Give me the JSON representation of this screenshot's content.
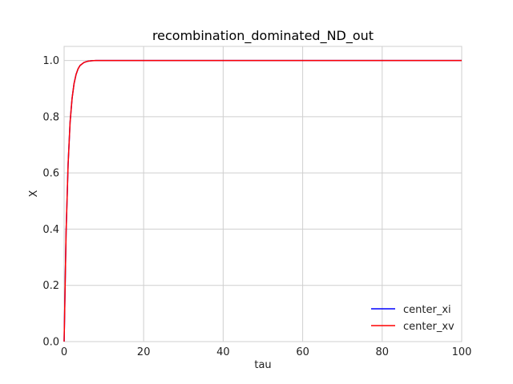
{
  "chart_data": {
    "type": "line",
    "title": "recombination_dominated_ND_out",
    "xlabel": "tau",
    "ylabel": "X",
    "xlim": [
      0,
      100
    ],
    "ylim": [
      0,
      1.05
    ],
    "x_ticks": [
      0,
      20,
      40,
      60,
      80,
      100
    ],
    "y_ticks": [
      0.0,
      0.2,
      0.4,
      0.6,
      0.8,
      1.0
    ],
    "x_tick_labels": [
      "0",
      "20",
      "40",
      "60",
      "80",
      "100"
    ],
    "y_tick_labels": [
      "0.0",
      "0.2",
      "0.4",
      "0.6",
      "0.8",
      "1.0"
    ],
    "grid": true,
    "legend_position": "bottom-right",
    "x": [
      0,
      0.5,
      1,
      1.5,
      2,
      2.5,
      3,
      3.5,
      4,
      5,
      6,
      7,
      8,
      10,
      15,
      20,
      30,
      40,
      50,
      60,
      70,
      80,
      90,
      100
    ],
    "series": [
      {
        "name": "center_xi",
        "color": "#0000ff",
        "values": [
          0.0,
          0.39,
          0.63,
          0.78,
          0.865,
          0.918,
          0.95,
          0.97,
          0.982,
          0.993,
          0.9975,
          0.999,
          1.0,
          1.0,
          1.0,
          1.0,
          1.0,
          1.0,
          1.0,
          1.0,
          1.0,
          1.0,
          1.0,
          1.0
        ]
      },
      {
        "name": "center_xv",
        "color": "#ff0000",
        "values": [
          0.0,
          0.39,
          0.63,
          0.78,
          0.865,
          0.918,
          0.95,
          0.97,
          0.982,
          0.993,
          0.9975,
          0.999,
          1.0,
          1.0,
          1.0,
          1.0,
          1.0,
          1.0,
          1.0,
          1.0,
          1.0,
          1.0,
          1.0,
          1.0
        ]
      }
    ]
  }
}
